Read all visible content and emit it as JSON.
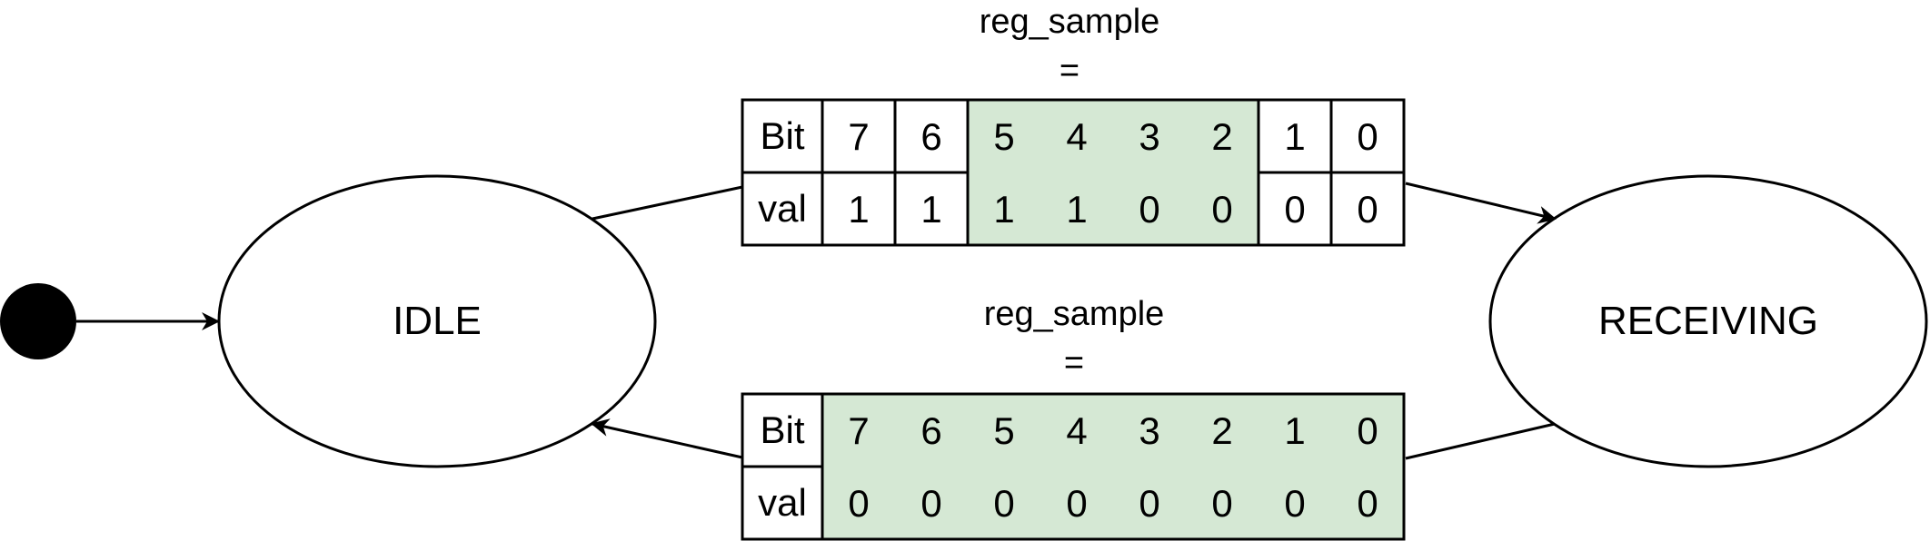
{
  "states": {
    "idle": "IDLE",
    "receiving": "RECEIVING"
  },
  "top_register": {
    "name": "reg_sample",
    "eq": "=",
    "row_header_bit": "Bit",
    "row_header_val": "val",
    "bits": [
      "7",
      "6",
      "5",
      "4",
      "3",
      "2",
      "1",
      "0"
    ],
    "vals": [
      "1",
      "1",
      "1",
      "1",
      "0",
      "0",
      "0",
      "0"
    ],
    "highlight_bits": [
      "5",
      "4",
      "3",
      "2"
    ]
  },
  "bottom_register": {
    "name": "reg_sample",
    "eq": "=",
    "row_header_bit": "Bit",
    "row_header_val": "val",
    "bits": [
      "7",
      "6",
      "5",
      "4",
      "3",
      "2",
      "1",
      "0"
    ],
    "vals": [
      "0",
      "0",
      "0",
      "0",
      "0",
      "0",
      "0",
      "0"
    ],
    "highlight_bits": [
      "7",
      "6",
      "5",
      "4",
      "3",
      "2",
      "1",
      "0"
    ]
  },
  "colors": {
    "highlight": "#d5e8d4",
    "stroke": "#000000"
  }
}
